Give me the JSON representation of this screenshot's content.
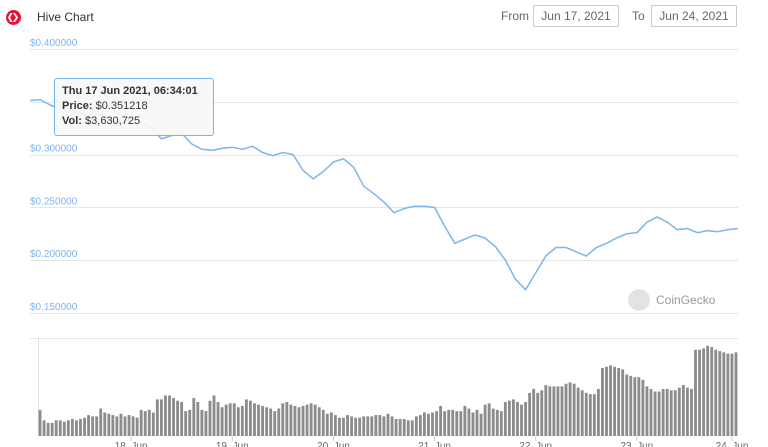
{
  "header": {
    "title": "Hive Chart",
    "from_label": "From",
    "from_value": "Jun 17, 2021",
    "to_label": "To",
    "to_value": "Jun 24, 2021"
  },
  "tooltip": {
    "heading": "Thu 17 Jun 2021, 06:34:01",
    "price_label": "Price:",
    "price_value": "$0.351218",
    "vol_label": "Vol:",
    "vol_value": "$3,630,725"
  },
  "watermark": "CoinGecko",
  "colors": {
    "line": "#7cb5ec",
    "volume": "#8c8c8c",
    "axis_label": "#7cb5ec",
    "brand": "#e31337"
  },
  "chart_data": [
    {
      "type": "line",
      "name": "price",
      "ylim": [
        0.15,
        0.4
      ],
      "yticks": [
        "$0.150000",
        "$0.200000",
        "$0.250000",
        "$0.300000",
        "$0.400000"
      ],
      "xlim": [
        17.0,
        24.0
      ],
      "grid": true,
      "x": [
        17.0,
        17.1,
        17.2,
        17.3,
        17.4,
        17.5,
        17.6,
        17.7,
        17.8,
        17.9,
        18.0,
        18.1,
        18.2,
        18.3,
        18.4,
        18.5,
        18.6,
        18.7,
        18.8,
        18.9,
        19.0,
        19.1,
        19.2,
        19.3,
        19.4,
        19.5,
        19.6,
        19.7,
        19.8,
        19.9,
        20.0,
        20.1,
        20.2,
        20.3,
        20.4,
        20.5,
        20.6,
        20.7,
        20.8,
        20.9,
        21.0,
        21.1,
        21.2,
        21.3,
        21.4,
        21.5,
        21.6,
        21.7,
        21.8,
        21.9,
        22.0,
        22.1,
        22.2,
        22.3,
        22.4,
        22.5,
        22.6,
        22.7,
        22.8,
        22.9,
        23.0,
        23.1,
        23.2,
        23.3,
        23.4,
        23.5,
        23.6,
        23.7,
        23.8,
        23.9,
        24.0
      ],
      "y": [
        0.3512,
        0.352,
        0.347,
        0.343,
        0.341,
        0.339,
        0.335,
        0.338,
        0.334,
        0.33,
        0.333,
        0.33,
        0.325,
        0.315,
        0.318,
        0.32,
        0.31,
        0.305,
        0.304,
        0.306,
        0.307,
        0.305,
        0.308,
        0.302,
        0.299,
        0.302,
        0.3,
        0.285,
        0.277,
        0.284,
        0.293,
        0.296,
        0.288,
        0.27,
        0.263,
        0.255,
        0.245,
        0.249,
        0.251,
        0.251,
        0.25,
        0.232,
        0.216,
        0.22,
        0.224,
        0.221,
        0.213,
        0.2,
        0.182,
        0.172,
        0.188,
        0.204,
        0.212,
        0.212,
        0.208,
        0.204,
        0.212,
        0.216,
        0.221,
        0.225,
        0.226,
        0.236,
        0.241,
        0.236,
        0.229,
        0.23,
        0.226,
        0.228,
        0.227,
        0.229,
        0.23
      ]
    },
    {
      "type": "bar",
      "name": "volume",
      "x_labels": [
        "18. Jun",
        "19. Jun",
        "20. Jun",
        "21. Jun",
        "22. Jun",
        "23. Jun",
        "24. Jun"
      ],
      "values": [
        2,
        1.2,
        1,
        1,
        1.2,
        1.2,
        1.1,
        1.2,
        1.3,
        1.2,
        1.3,
        1.4,
        1.6,
        1.5,
        1.5,
        2.1,
        1.8,
        1.7,
        1.6,
        1.5,
        1.7,
        1.5,
        1.6,
        1.5,
        1.4,
        2,
        1.9,
        2,
        1.8,
        2.8,
        2.8,
        3.1,
        3.1,
        2.9,
        2.7,
        2.6,
        1.9,
        2,
        2.9,
        2.6,
        2,
        1.9,
        2.7,
        3.1,
        2.6,
        2.2,
        2.4,
        2.5,
        2.5,
        2.2,
        2.3,
        2.8,
        2.7,
        2.5,
        2.4,
        2.3,
        2.2,
        2.1,
        1.9,
        2.1,
        2.5,
        2.6,
        2.4,
        2.3,
        2.2,
        2.3,
        2.4,
        2.5,
        2.4,
        2.2,
        2,
        1.7,
        1.8,
        1.6,
        1.4,
        1.4,
        1.6,
        1.5,
        1.4,
        1.4,
        1.5,
        1.5,
        1.5,
        1.6,
        1.6,
        1.5,
        1.7,
        1.5,
        1.3,
        1.3,
        1.3,
        1.2,
        1.2,
        1.5,
        1.6,
        1.8,
        1.7,
        1.8,
        1.9,
        2.3,
        1.9,
        2,
        2,
        1.9,
        1.9,
        2.3,
        2.1,
        1.8,
        2,
        1.7,
        2.4,
        2.5,
        2.1,
        2,
        1.9,
        2.6,
        2.7,
        2.8,
        2.6,
        2.4,
        2.6,
        3.3,
        3.6,
        3.3,
        3.5,
        3.9,
        3.8,
        3.8,
        3.8,
        3.8,
        4,
        4.1,
        4,
        3.7,
        3.5,
        3.3,
        3.2,
        3.2,
        3.6,
        5.2,
        5.3,
        5.4,
        5.3,
        5.2,
        5.1,
        4.7,
        4.6,
        4.5,
        4.5,
        4.3,
        3.8,
        3.6,
        3.4,
        3.4,
        3.6,
        3.6,
        3.5,
        3.5,
        3.7,
        3.9,
        3.7,
        3.6,
        6.6,
        6.6,
        6.7,
        6.9,
        6.8,
        6.6,
        6.5,
        6.4,
        6.3,
        6.3,
        6.4
      ]
    }
  ]
}
